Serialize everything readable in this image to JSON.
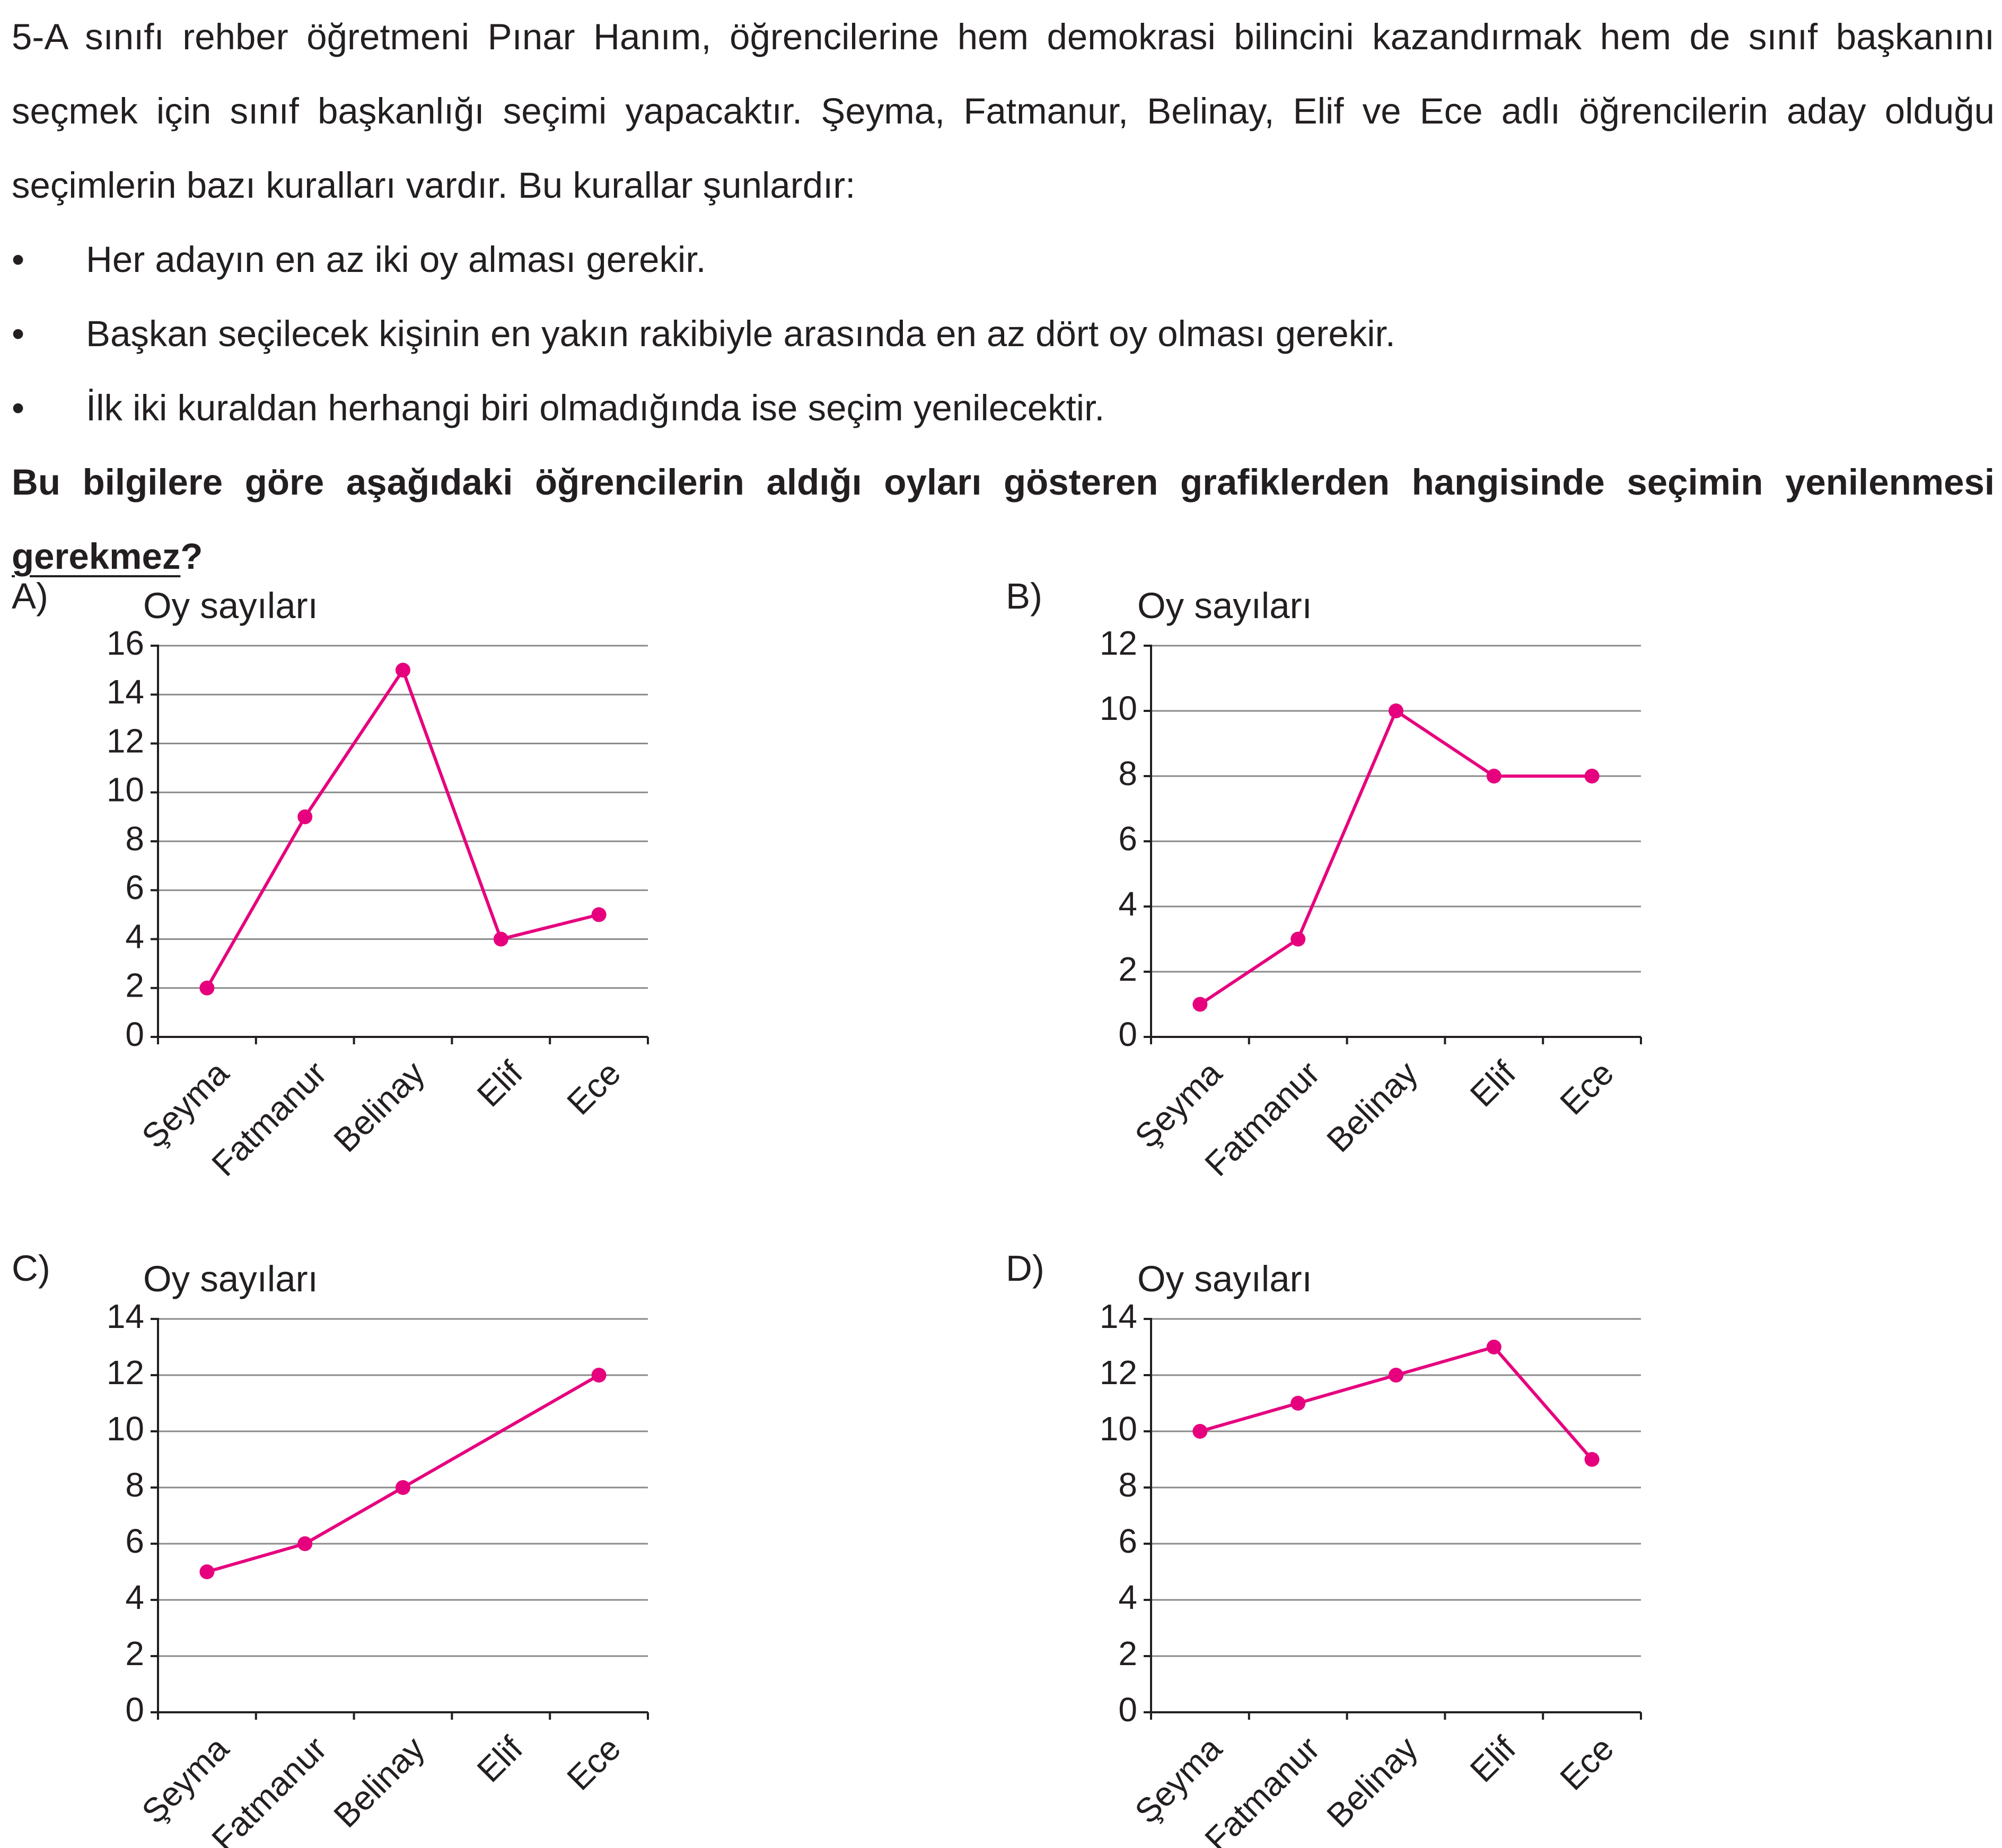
{
  "question": {
    "stem": "5-A sınıfı rehber öğretmeni Pınar Hanım, öğrencilerine hem demokrasi bilincini kazandırmak hem de sınıf başkanını seçmek için sınıf başkanlığı seçimi yapacaktır. Şeyma, Fatmanur, Belinay, Elif ve Ece adlı öğrencilerin aday olduğu seçimlerin bazı kuralları vardır. Bu kurallar şunlardır:",
    "rules": [
      "Her adayın en az iki oy alması gerekir.",
      "Başkan seçilecek kişinin en yakın rakibiyle arasında en az dört oy olması gerekir.",
      "İlk iki kuraldan herhangi biri olmadığında ise seçim yenilecektir."
    ],
    "bullet": "•",
    "prompt_before": "Bu bilgilere göre aşağıdaki öğrencilerin aldığı oyları gösteren grafiklerden hangisinde seçimin yenilenmesi ",
    "prompt_negation": "gerekmez",
    "prompt_after": "?"
  },
  "colors": {
    "line": "#e6007e",
    "text": "#231f20",
    "grid": "#8a8a8a"
  },
  "chart_data": [
    {
      "type": "line",
      "option": "A)",
      "ylabel": "Oy sayıları",
      "categories": [
        "Şeyma",
        "Fatmanur",
        "Belinay",
        "Elif",
        "Ece"
      ],
      "values": [
        2,
        9,
        15,
        4,
        5
      ],
      "ylim": [
        0,
        16
      ],
      "yticks": [
        "0",
        "2",
        "4",
        "6",
        "8",
        "10",
        "12",
        "14",
        "16"
      ],
      "grid": true
    },
    {
      "type": "line",
      "option": "B)",
      "ylabel": "Oy sayıları",
      "categories": [
        "Şeyma",
        "Fatmanur",
        "Belinay",
        "Elif",
        "Ece"
      ],
      "values": [
        1,
        3,
        10,
        8,
        8
      ],
      "ylim": [
        0,
        12
      ],
      "yticks": [
        "0",
        "2",
        "4",
        "6",
        "8",
        "10",
        "12"
      ],
      "grid": true
    },
    {
      "type": "line",
      "option": "C)",
      "ylabel": "Oy sayıları",
      "categories": [
        "Şeyma",
        "Fatmanur",
        "Belinay",
        "Elif",
        "Ece"
      ],
      "values": [
        5,
        6,
        8,
        null,
        12
      ],
      "ylim": [
        0,
        14
      ],
      "yticks": [
        "0",
        "2",
        "4",
        "6",
        "8",
        "10",
        "12",
        "14"
      ],
      "grid": true
    },
    {
      "type": "line",
      "option": "D)",
      "ylabel": "Oy sayıları",
      "categories": [
        "Şeyma",
        "Fatmanur",
        "Belinay",
        "Elif",
        "Ece"
      ],
      "values": [
        10,
        11,
        12,
        13,
        9
      ],
      "ylim": [
        0,
        14
      ],
      "yticks": [
        "0",
        "2",
        "4",
        "6",
        "8",
        "10",
        "12",
        "14"
      ],
      "grid": true
    }
  ]
}
